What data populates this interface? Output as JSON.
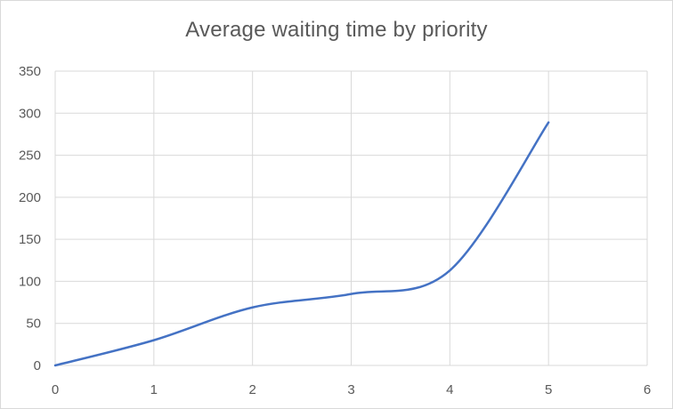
{
  "chart_data": {
    "type": "line",
    "title": "Average waiting time by priority",
    "xlabel": "",
    "ylabel": "",
    "x": [
      0,
      1,
      2,
      3,
      4,
      5
    ],
    "series": [
      {
        "values": [
          0,
          30,
          69,
          85,
          113,
          289
        ]
      }
    ],
    "xlim": [
      0,
      6
    ],
    "ylim": [
      0,
      350
    ],
    "x_ticks": [
      0,
      1,
      2,
      3,
      4,
      5,
      6
    ],
    "y_ticks": [
      0,
      50,
      100,
      150,
      200,
      250,
      300,
      350
    ],
    "smooth": true,
    "grid": {
      "vertical": true,
      "horizontal": true
    },
    "legend": "none",
    "colors": {
      "series": "#4472c4",
      "grid": "#d9d9d9",
      "text": "#595959"
    }
  }
}
